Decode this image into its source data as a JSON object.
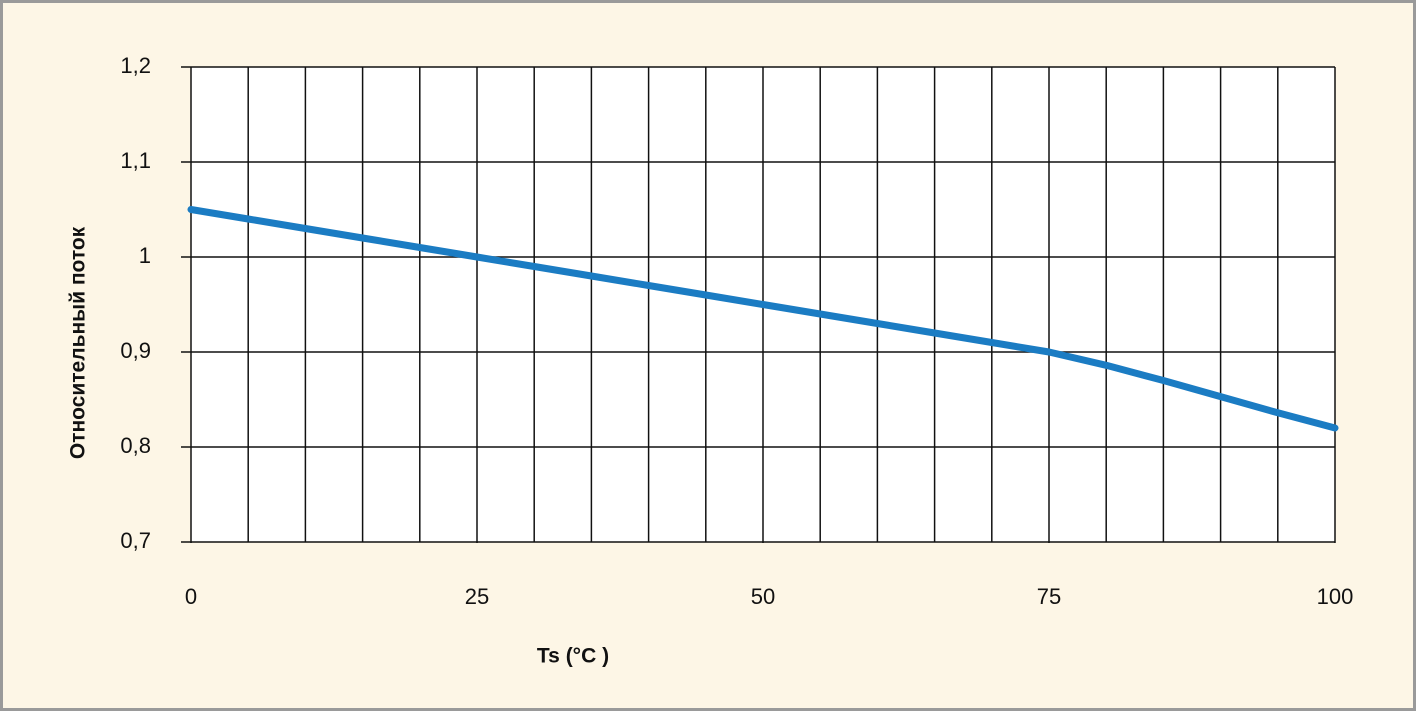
{
  "chart_data": {
    "type": "line",
    "y_label": "Относительный поток",
    "x_label": "Ts (°C )",
    "x": [
      0,
      5,
      10,
      15,
      20,
      25,
      30,
      35,
      40,
      45,
      50,
      55,
      60,
      65,
      70,
      75,
      80,
      85,
      90,
      95,
      100
    ],
    "series": [
      {
        "color": "#1b7cc3",
        "values": [
          1.05,
          1.04,
          1.03,
          1.02,
          1.01,
          1.0,
          0.99,
          0.98,
          0.97,
          0.96,
          0.95,
          0.94,
          0.93,
          0.92,
          0.91,
          0.9,
          0.886,
          0.87,
          0.853,
          0.836,
          0.82
        ]
      }
    ],
    "xlim": [
      0,
      100
    ],
    "xticks": [
      0,
      25,
      50,
      75,
      100
    ],
    "xgrid": [
      0,
      5,
      10,
      15,
      20,
      25,
      30,
      35,
      40,
      45,
      50,
      55,
      60,
      65,
      70,
      75,
      80,
      85,
      90,
      95,
      100
    ],
    "ylim": [
      0.7,
      1.2
    ],
    "yticks": [
      {
        "value": 0.7,
        "label": "0,7"
      },
      {
        "value": 0.8,
        "label": "0,8"
      },
      {
        "value": 0.9,
        "label": "0,9"
      },
      1,
      {
        "value": 1.1,
        "label": "1,1"
      },
      {
        "value": 1.2,
        "label": "1,2"
      }
    ],
    "grid": true
  }
}
